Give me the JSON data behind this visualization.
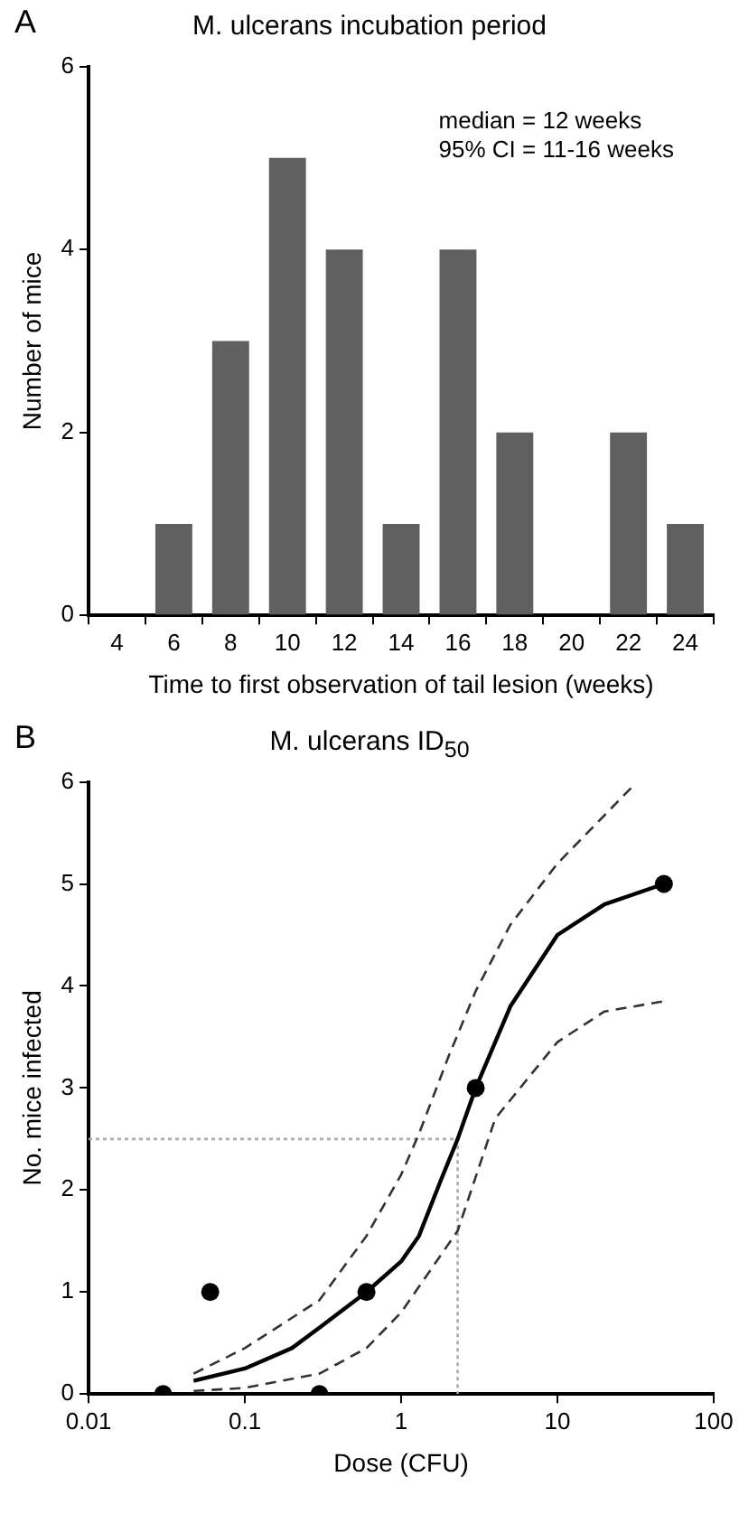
{
  "chart_data": [
    {
      "type": "bar",
      "title": "M. ulcerans incubation period",
      "xlabel": "Time to first observation of tail lesion (weeks)",
      "ylabel": "Number of mice",
      "annotations": [
        "A",
        "median = 12 weeks",
        "95% CI = 11-16 weeks"
      ],
      "categories": [
        "4",
        "6",
        "8",
        "10",
        "12",
        "14",
        "16",
        "18",
        "20",
        "22",
        "24"
      ],
      "values": [
        0,
        1,
        3,
        5,
        4,
        1,
        4,
        2,
        0,
        2,
        1
      ],
      "color": "#606060",
      "ylim": [
        0,
        6
      ],
      "yticks": [
        0,
        2,
        4,
        6
      ],
      "grid": false,
      "legend": false
    },
    {
      "type": "scatter",
      "title": "M. ulcerans ID$_{50}$",
      "xlabel": "Dose (CFU)",
      "ylabel": "No. mice infected",
      "annotations": [
        "B"
      ],
      "log": "x",
      "series": [
        {
          "type": "scatter",
          "color": "#000000",
          "marker": "circle",
          "x": [
            0.03,
            0.06,
            0.3,
            0.6,
            3,
            48
          ],
          "values": [
            0,
            1,
            0,
            1,
            3,
            5
          ]
        },
        {
          "type": "line",
          "color": "#000000",
          "marker": "none",
          "line_style": "solid",
          "x": [
            0.047,
            0.1,
            0.2,
            0.3,
            0.6,
            1,
            1.3,
            1.8,
            2.3,
            3,
            5,
            10,
            20,
            48
          ],
          "values": [
            0.13,
            0.25,
            0.45,
            0.65,
            1.0,
            1.3,
            1.55,
            2.1,
            2.5,
            3.0,
            3.8,
            4.5,
            4.8,
            5.0
          ]
        },
        {
          "type": "line",
          "color": "#333333",
          "marker": "none",
          "line_style": "dashed",
          "x": [
            0.047,
            0.1,
            0.3,
            0.6,
            1,
            1.3,
            2,
            3,
            5,
            10,
            30
          ],
          "values": [
            0.2,
            0.45,
            0.92,
            1.55,
            2.15,
            2.55,
            3.3,
            3.95,
            4.6,
            5.2,
            5.95
          ]
        },
        {
          "type": "line",
          "color": "#333333",
          "marker": "none",
          "line_style": "dashed",
          "x": [
            0.047,
            0.1,
            0.3,
            0.6,
            1,
            2.3,
            4,
            10,
            20,
            48
          ],
          "values": [
            0.03,
            0.06,
            0.2,
            0.45,
            0.8,
            1.6,
            2.7,
            3.45,
            3.75,
            3.85
          ]
        },
        {
          "type": "line",
          "color": "#aaaaaa",
          "marker": "none",
          "line_style": "dotted",
          "x": [
            0.01,
            2.3,
            2.3
          ],
          "values": [
            2.5,
            2.5,
            0
          ]
        }
      ],
      "xlim": [
        0.01,
        100
      ],
      "xticks": [
        0.01,
        0.1,
        1,
        10,
        100
      ],
      "ylim": [
        0,
        6
      ],
      "yticks": [
        0,
        1,
        2,
        3,
        4,
        5,
        6
      ],
      "grid": false,
      "legend": false
    }
  ]
}
